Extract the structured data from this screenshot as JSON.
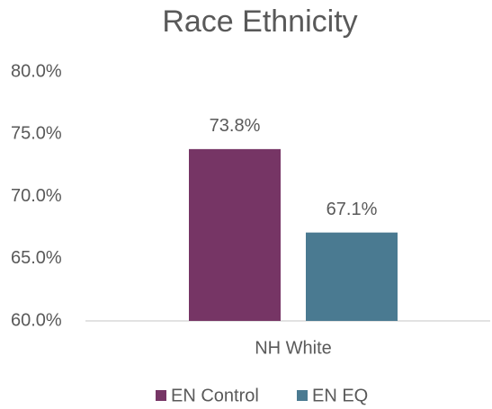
{
  "chart_data": {
    "type": "bar",
    "title": "Race Ethnicity",
    "categories": [
      "NH White"
    ],
    "series": [
      {
        "name": "EN Control",
        "color": "#763565",
        "values": [
          73.8
        ],
        "value_labels": [
          "73.8%"
        ]
      },
      {
        "name": "EN EQ",
        "color": "#4a7a91",
        "values": [
          67.1
        ],
        "value_labels": [
          "67.1%"
        ]
      }
    ],
    "ylim": [
      60,
      80
    ],
    "yticks": [
      {
        "value": 60,
        "label": "60.0%"
      },
      {
        "value": 65,
        "label": "65.0%"
      },
      {
        "value": 70,
        "label": "70.0%"
      },
      {
        "value": 75,
        "label": "75.0%"
      },
      {
        "value": 80,
        "label": "80.0%"
      }
    ],
    "grid": false,
    "legend": "bottom"
  }
}
